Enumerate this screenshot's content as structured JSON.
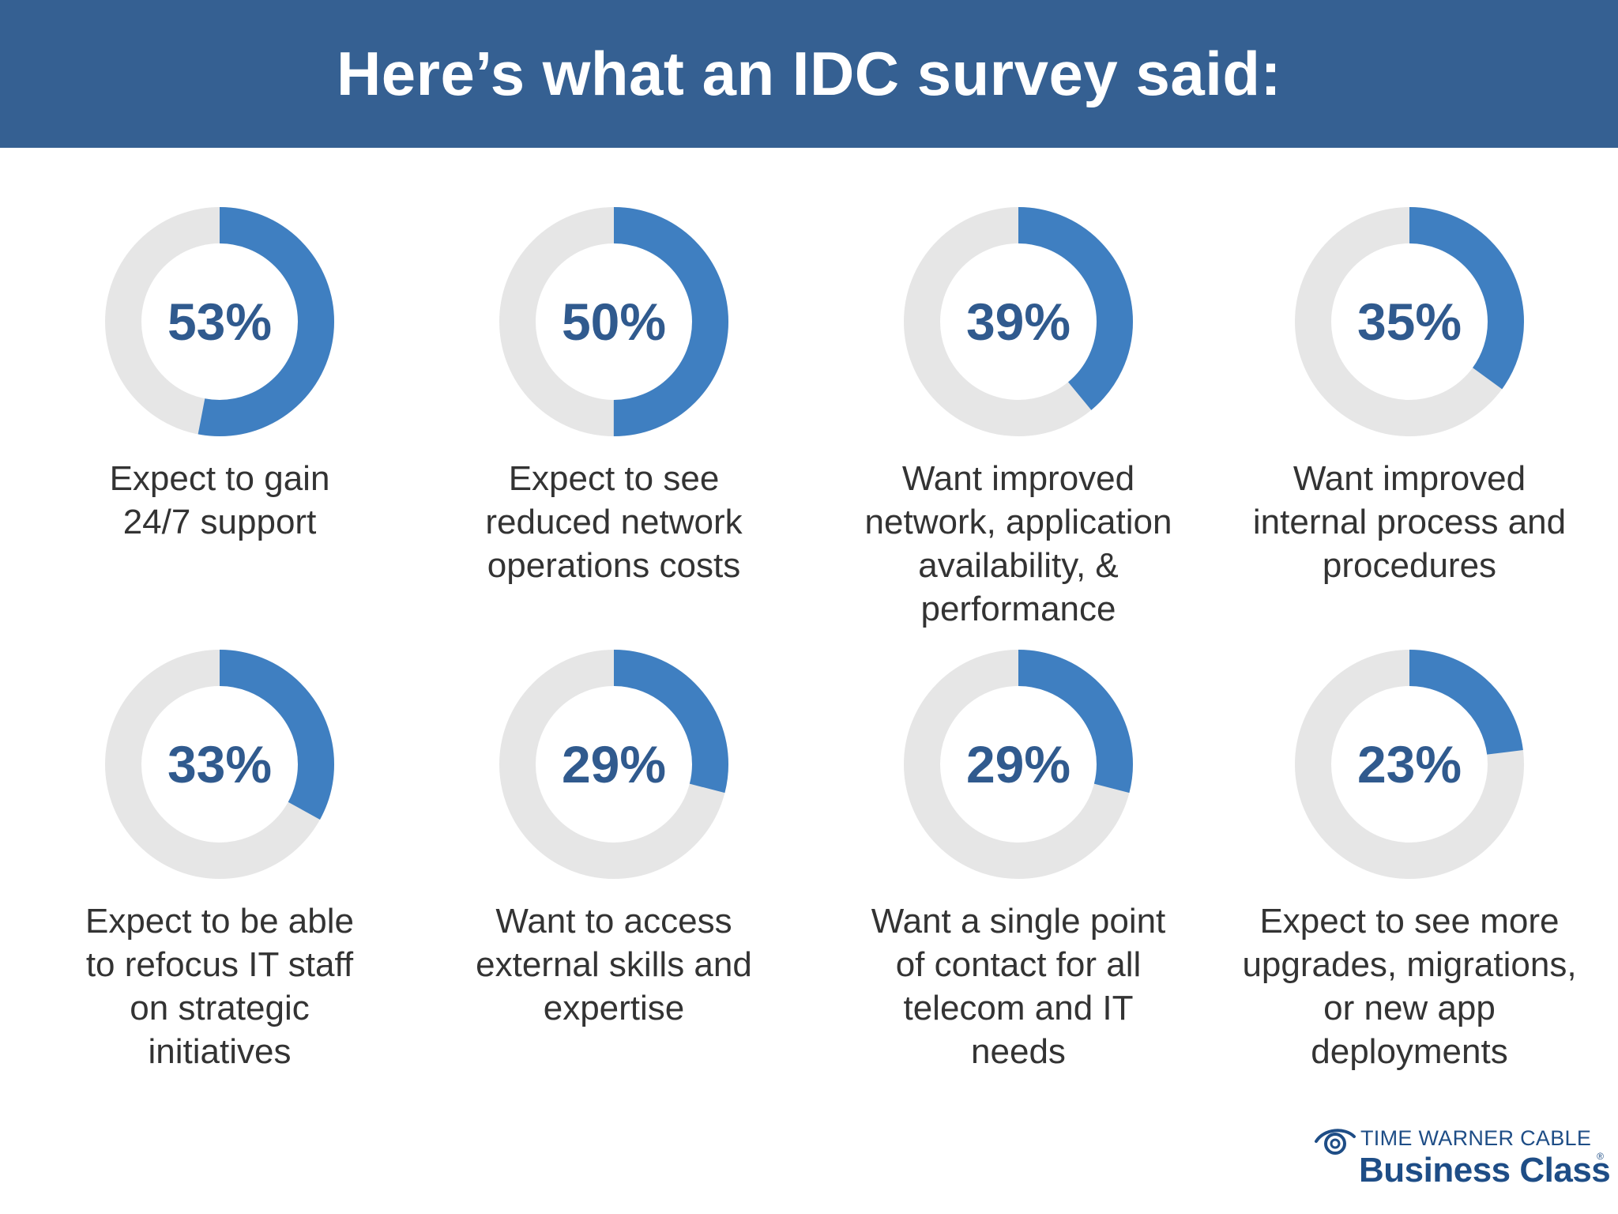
{
  "header": {
    "title": "Here’s what an IDC survey said:"
  },
  "chart_data": {
    "type": "donut",
    "colors": {
      "filled": "#3f7fc1",
      "track": "#e6e6e6",
      "label": "#305a8e"
    },
    "items": [
      {
        "value": 53,
        "label": "53%",
        "caption": [
          "Expect to gain",
          "24/7 support"
        ]
      },
      {
        "value": 50,
        "label": "50%",
        "caption": [
          "Expect to see",
          "reduced network",
          "operations costs"
        ]
      },
      {
        "value": 39,
        "label": "39%",
        "caption": [
          "Want improved",
          "network, application",
          "availability, &",
          "performance"
        ]
      },
      {
        "value": 35,
        "label": "35%",
        "caption": [
          "Want improved",
          "internal process and",
          "procedures"
        ]
      },
      {
        "value": 33,
        "label": "33%",
        "caption": [
          "Expect to be able",
          "to refocus IT staff",
          "on strategic",
          "initiatives"
        ]
      },
      {
        "value": 29,
        "label": "29%",
        "caption": [
          "Want to access",
          "external skills and",
          "expertise"
        ]
      },
      {
        "value": 29,
        "label": "29%",
        "caption": [
          "Want a single point",
          "of contact for all",
          "telecom and IT",
          "needs"
        ]
      },
      {
        "value": 23,
        "label": "23%",
        "caption": [
          "Expect to see more",
          "upgrades, migrations,",
          "or new app",
          "deployments"
        ]
      }
    ]
  },
  "logo": {
    "line1": "TIME WARNER CABLE",
    "line2": "Business Class",
    "reg": "®",
    "icon": "tw-eye-icon"
  }
}
